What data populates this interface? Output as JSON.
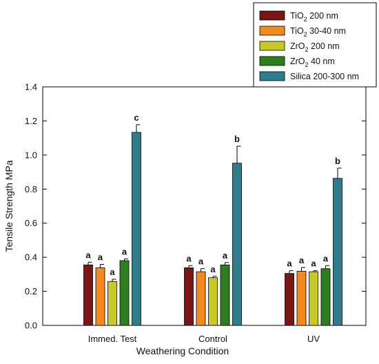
{
  "chart_data": {
    "type": "bar",
    "xlabel": "Weathering Condition",
    "ylabel": "Tensile Strength MPa",
    "ylim": [
      0,
      1.4
    ],
    "yticks": [
      "0.0",
      "0.2",
      "0.4",
      "0.6",
      "0.8",
      "1.0",
      "1.2",
      "1.4"
    ],
    "categories": [
      "Immed. Test",
      "Control",
      "UV"
    ],
    "grid": false,
    "legend_position": "top-right",
    "series": [
      {
        "name": "TiO2 200 nm",
        "legend_main": "TiO",
        "legend_sub": "2",
        "legend_rest": " 200 nm",
        "color": "#7a1616",
        "values": [
          0.355,
          0.338,
          0.305
        ],
        "errors": [
          0.016,
          0.013,
          0.016
        ],
        "labels": [
          "a",
          "a",
          "a"
        ]
      },
      {
        "name": "TiO2 30-40 nm",
        "legend_main": "TiO",
        "legend_sub": "2",
        "legend_rest": " 30-40 nm",
        "color": "#f5891e",
        "values": [
          0.338,
          0.315,
          0.318
        ],
        "errors": [
          0.02,
          0.018,
          0.022
        ],
        "labels": [
          "a",
          "a",
          "a"
        ]
      },
      {
        "name": "ZrO2 200 nm",
        "legend_main": "ZrO",
        "legend_sub": "2",
        "legend_rest": " 200 nm",
        "color": "#c7c928",
        "values": [
          0.258,
          0.28,
          0.315
        ],
        "errors": [
          0.013,
          0.008,
          0.006
        ],
        "labels": [
          "a",
          "a",
          "a"
        ]
      },
      {
        "name": "ZrO2 40 nm",
        "legend_main": "ZrO",
        "legend_sub": "2",
        "legend_rest": " 40 nm",
        "color": "#2e7d1e",
        "values": [
          0.38,
          0.355,
          0.333
        ],
        "errors": [
          0.01,
          0.014,
          0.018
        ],
        "labels": [
          "a",
          "a",
          "a"
        ]
      },
      {
        "name": "Silica 200-300 nm",
        "legend_main": "Silica 200-300 nm",
        "legend_sub": "",
        "legend_rest": "",
        "color": "#2f7d8c",
        "values": [
          1.133,
          0.952,
          0.863
        ],
        "errors": [
          0.045,
          0.1,
          0.06
        ],
        "labels": [
          "c",
          "b",
          "b"
        ]
      }
    ]
  }
}
